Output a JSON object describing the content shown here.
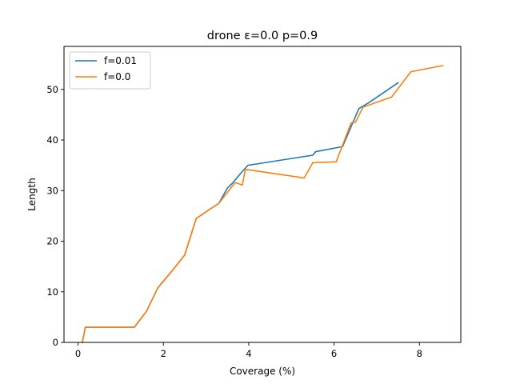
{
  "chart_data": {
    "type": "line",
    "title": "drone ε=0.0 p=0.9",
    "xlabel": "Coverage (%)",
    "ylabel": "Length",
    "xlim": [
      -0.33,
      8.97
    ],
    "ylim": [
      0,
      58.5
    ],
    "xticks": [
      0,
      2,
      4,
      6,
      8
    ],
    "yticks": [
      0,
      10,
      20,
      30,
      40,
      50
    ],
    "grid": false,
    "legend_position": "top-left",
    "series": [
      {
        "name": "f=0.01",
        "color": "#1f77b4",
        "x": [
          0.1,
          0.17,
          1.32,
          1.6,
          1.87,
          2.2,
          2.5,
          2.77,
          3.3,
          3.5,
          3.62,
          3.82,
          3.98,
          5.5,
          5.57,
          6.2,
          6.58,
          6.8,
          7.5
        ],
        "y": [
          0,
          3.0,
          3.0,
          6.1,
          10.8,
          14.1,
          17.3,
          24.5,
          27.5,
          30.5,
          31.5,
          33.5,
          35.0,
          37.0,
          37.7,
          38.7,
          46.2,
          47.3,
          51.3
        ]
      },
      {
        "name": "f=0.0",
        "color": "#ff7f0e",
        "x": [
          0.1,
          0.17,
          1.32,
          1.6,
          1.87,
          2.2,
          2.5,
          2.77,
          3.3,
          3.68,
          3.85,
          3.92,
          5.3,
          5.5,
          6.05,
          6.4,
          6.5,
          6.68,
          7.35,
          7.8,
          8.55
        ],
        "y": [
          0,
          3.0,
          3.0,
          6.1,
          10.8,
          14.1,
          17.3,
          24.5,
          27.5,
          31.6,
          31.1,
          34.2,
          32.5,
          35.5,
          35.7,
          43.4,
          43.5,
          46.5,
          48.5,
          53.5,
          54.7
        ]
      }
    ]
  }
}
